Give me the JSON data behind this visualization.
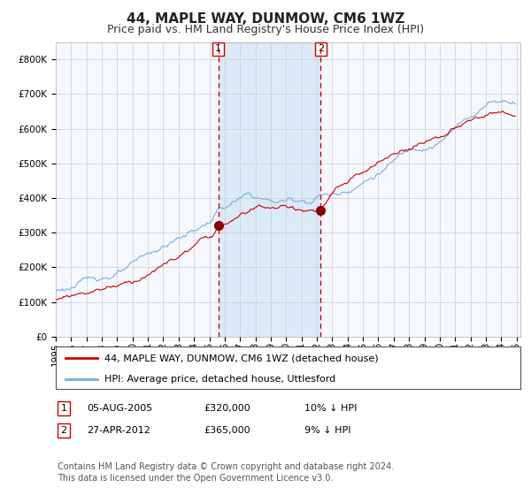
{
  "title": "44, MAPLE WAY, DUNMOW, CM6 1WZ",
  "subtitle": "Price paid vs. HM Land Registry's House Price Index (HPI)",
  "ylim": [
    0,
    850000
  ],
  "yticks": [
    0,
    100000,
    200000,
    300000,
    400000,
    500000,
    600000,
    700000,
    800000
  ],
  "hpi_color": "#7aaddb",
  "price_color": "#cc0000",
  "marker_color": "#880000",
  "shade_color": "#daeaf7",
  "dashed_color": "#cc0000",
  "grid_color": "#cccccc",
  "bg_color": "#ffffff",
  "plot_bg_color": "#f5f8ff",
  "sale1_price": 320000,
  "sale2_price": 365000,
  "legend_line1": "44, MAPLE WAY, DUNMOW, CM6 1WZ (detached house)",
  "legend_line2": "HPI: Average price, detached house, Uttlesford",
  "table_row1": [
    "1",
    "05-AUG-2005",
    "£320,000",
    "10% ↓ HPI"
  ],
  "table_row2": [
    "2",
    "27-APR-2012",
    "£365,000",
    "9% ↓ HPI"
  ],
  "footnote": "Contains HM Land Registry data © Crown copyright and database right 2024.\nThis data is licensed under the Open Government Licence v3.0.",
  "title_fontsize": 11,
  "subtitle_fontsize": 9,
  "tick_fontsize": 7.5,
  "legend_fontsize": 8,
  "table_fontsize": 8,
  "footnote_fontsize": 7
}
